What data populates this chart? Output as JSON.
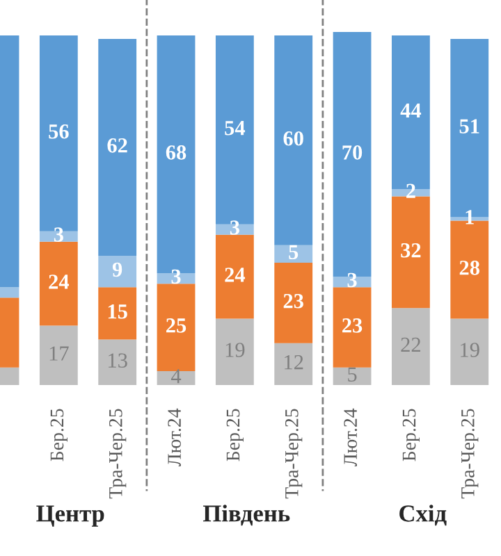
{
  "chart_data": {
    "type": "bar",
    "stacked": true,
    "categories": [
      null,
      "Бер.25",
      "Тра-Чер.25",
      "Лют.24",
      "Бер.25",
      "Тра-Чер.25",
      "Лют.24",
      "Бер.25",
      "Тра-Чер.25"
    ],
    "series": [
      {
        "color": "#bfbfbf",
        "values": [
          5,
          17,
          13,
          4,
          19,
          12,
          5,
          22,
          19
        ],
        "value_labels": [
          null,
          "17",
          "13",
          "4",
          "19",
          "12",
          "5",
          "22",
          "19"
        ]
      },
      {
        "color": "#ed7d31",
        "values": [
          20,
          24,
          15,
          25,
          24,
          23,
          23,
          32,
          28
        ],
        "value_labels": [
          null,
          "24",
          "15",
          "25",
          "24",
          "23",
          "23",
          "32",
          "28"
        ]
      },
      {
        "color": "#9dc3e6",
        "values": [
          3,
          3,
          9,
          3,
          3,
          5,
          3,
          2,
          1
        ],
        "value_labels": [
          null,
          "3",
          "9",
          "3",
          "3",
          "5",
          "3",
          "2",
          "1"
        ]
      },
      {
        "color": "#5b9bd5",
        "values": [
          72,
          56,
          62,
          68,
          54,
          60,
          70,
          44,
          51
        ],
        "value_labels": [
          null,
          "56",
          "62",
          "68",
          "54",
          "60",
          "70",
          "44",
          "51"
        ]
      }
    ],
    "annotations": [
      "Центр",
      "Південь",
      "Схід"
    ]
  }
}
